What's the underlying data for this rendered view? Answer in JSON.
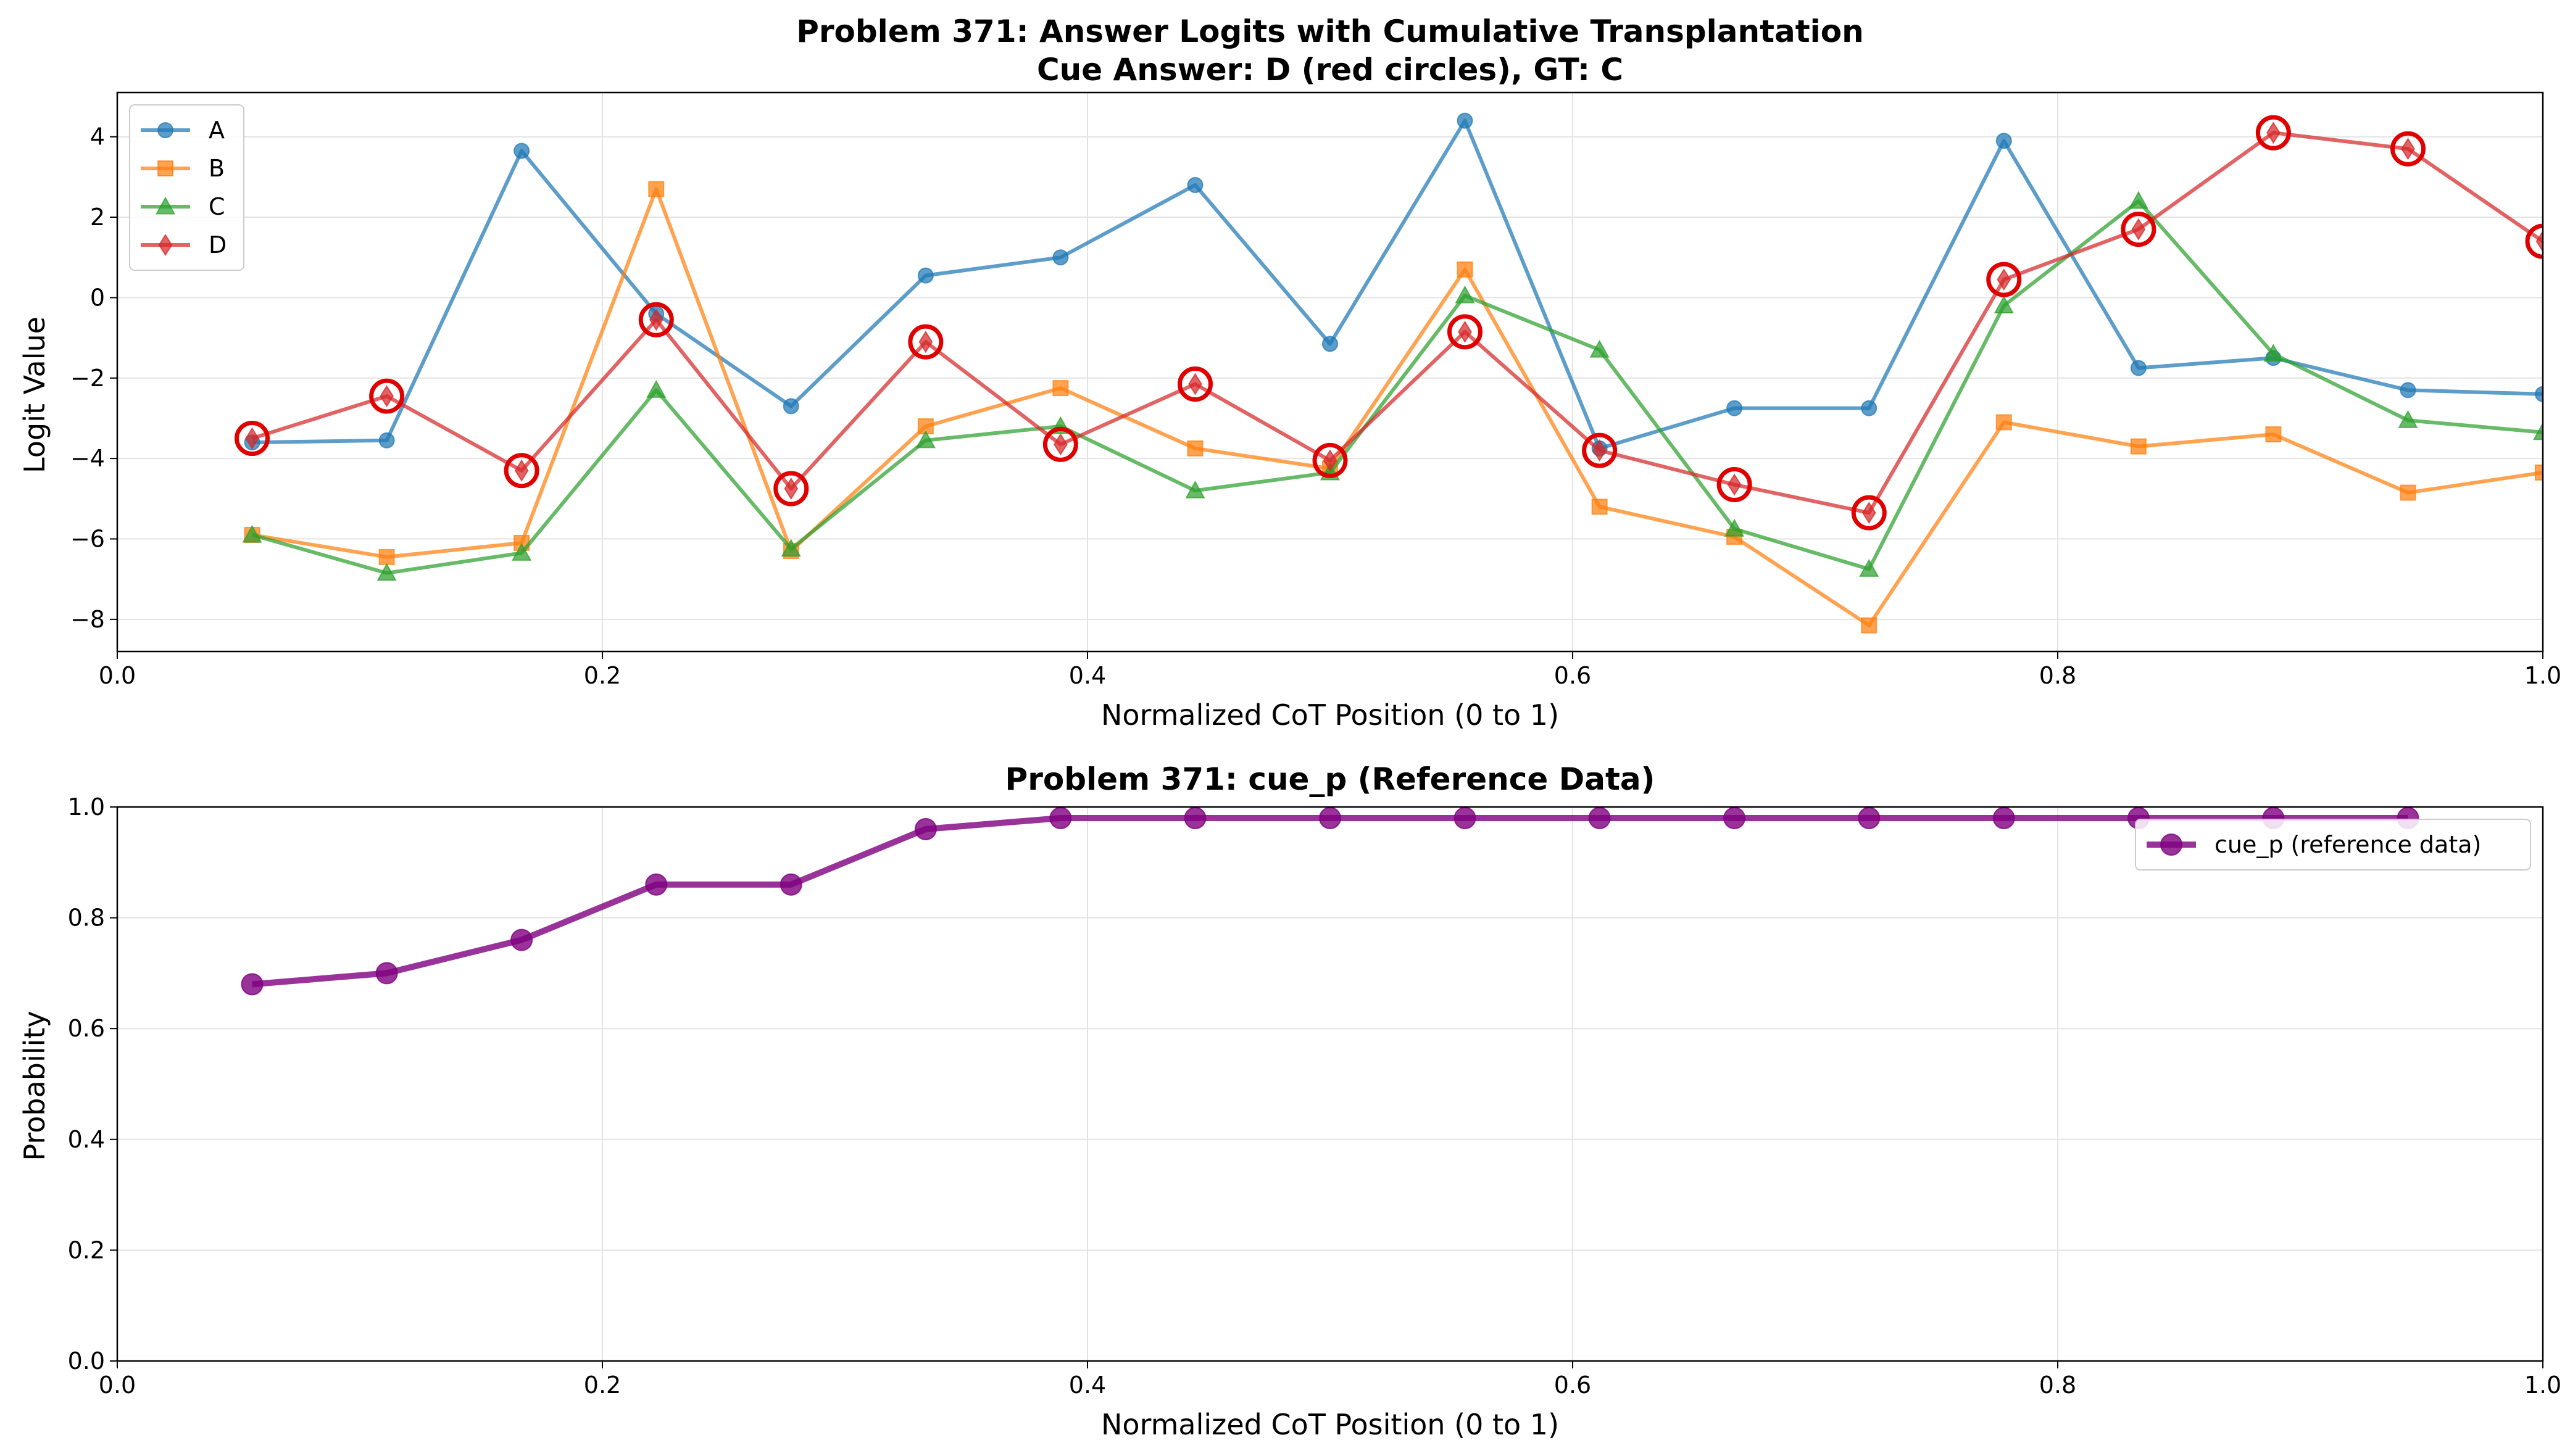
{
  "chart_data": [
    {
      "type": "line",
      "title": "Problem 371: Answer Logits with Cumulative Transplantation",
      "subtitle": "Cue Answer: D (red circles), GT: C",
      "xlabel": "Normalized CoT Position (0 to 1)",
      "ylabel": "Logit Value",
      "xlim": [
        0,
        1
      ],
      "ylim": [
        -8.8,
        5.1
      ],
      "xticks": [
        "0.0",
        "0.2",
        "0.4",
        "0.6",
        "0.8",
        "1.0"
      ],
      "yticks": [
        "4",
        "2",
        "0",
        "−2",
        "−4",
        "−6",
        "−8"
      ],
      "grid": true,
      "legend_position": "upper-left",
      "x": [
        0.0556,
        0.1111,
        0.1667,
        0.2222,
        0.2778,
        0.3333,
        0.3889,
        0.4444,
        0.5,
        0.5556,
        0.6111,
        0.6667,
        0.7222,
        0.7778,
        0.8333,
        0.8889,
        0.9444,
        1.0
      ],
      "series": [
        {
          "name": "A",
          "color": "#1f77b4",
          "marker": "circle",
          "values": [
            -3.6,
            -3.55,
            3.65,
            -0.4,
            -2.7,
            0.55,
            1.0,
            2.8,
            -1.15,
            4.4,
            -3.75,
            -2.75,
            -2.75,
            3.9,
            -1.75,
            -1.5,
            -2.3,
            -2.4
          ]
        },
        {
          "name": "B",
          "color": "#ff7f0e",
          "marker": "square",
          "values": [
            -5.9,
            -6.45,
            -6.1,
            2.7,
            -6.3,
            -3.2,
            -2.25,
            -3.75,
            -4.25,
            0.7,
            -5.2,
            -5.95,
            -8.15,
            -3.1,
            -3.7,
            -3.4,
            -4.85,
            -4.35
          ]
        },
        {
          "name": "C",
          "color": "#2ca02c",
          "marker": "triangle",
          "values": [
            -5.9,
            -6.85,
            -6.35,
            -2.3,
            -6.25,
            -3.55,
            -3.2,
            -4.8,
            -4.35,
            0.05,
            -1.3,
            -5.75,
            -6.75,
            -0.2,
            2.4,
            -1.4,
            -3.05,
            -3.35
          ]
        },
        {
          "name": "D",
          "color": "#d62728",
          "marker": "diamond",
          "values": [
            -3.5,
            -2.45,
            -4.3,
            -0.55,
            -4.75,
            -1.1,
            -3.65,
            -2.15,
            -4.05,
            -0.85,
            -3.8,
            -4.65,
            -5.35,
            0.45,
            1.7,
            4.1,
            3.7,
            1.4
          ]
        }
      ],
      "highlight": {
        "series": "D",
        "marker": "red-circle",
        "color": "#e00000"
      }
    },
    {
      "type": "line",
      "title": "Problem 371: cue_p (Reference Data)",
      "xlabel": "Normalized CoT Position (0 to 1)",
      "ylabel": "Probability",
      "xlim": [
        0,
        1
      ],
      "ylim": [
        0,
        1
      ],
      "xticks": [
        "0.0",
        "0.2",
        "0.4",
        "0.6",
        "0.8",
        "1.0"
      ],
      "yticks": [
        "0.0",
        "0.2",
        "0.4",
        "0.6",
        "0.8",
        "1.0"
      ],
      "grid": true,
      "legend_position": "upper-right",
      "x": [
        0.0556,
        0.1111,
        0.1667,
        0.2222,
        0.2778,
        0.3333,
        0.3889,
        0.4444,
        0.5,
        0.5556,
        0.6111,
        0.6667,
        0.7222,
        0.7778,
        0.8333,
        0.8889,
        0.9444
      ],
      "series": [
        {
          "name": "cue_p (reference data)",
          "color": "#800080",
          "marker": "circle",
          "values": [
            0.68,
            0.7,
            0.76,
            0.86,
            0.86,
            0.96,
            0.98,
            0.98,
            0.98,
            0.98,
            0.98,
            0.98,
            0.98,
            0.98,
            0.98,
            0.98,
            0.98
          ]
        }
      ]
    }
  ]
}
